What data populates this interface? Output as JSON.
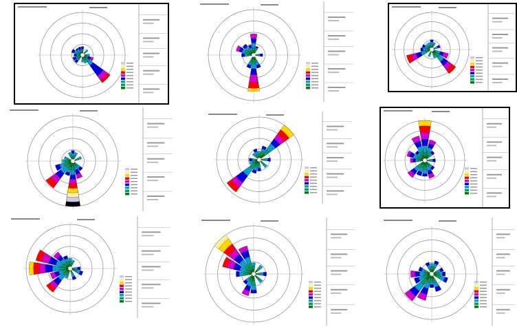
{
  "colors": {
    "bands": [
      "#c8c8f0",
      "#fff0a0",
      "#ffd700",
      "#ff0000",
      "#d000d0",
      "#0000e0",
      "#00a0d0",
      "#00a060",
      "#008000"
    ],
    "ring": "#8a8a8a",
    "frame": "#000000"
  },
  "chart_data": [
    {
      "type": "pie",
      "subtype": "wind-rose",
      "bordered": true,
      "directions": 16,
      "petals": [
        {
          "dir": 0,
          "bands": [
            6,
            4,
            3,
            2
          ]
        },
        {
          "dir": 2,
          "bands": [
            5,
            3,
            2
          ]
        },
        {
          "dir": 4,
          "bands": [
            5,
            3,
            2
          ]
        },
        {
          "dir": 5,
          "bands": [
            8,
            6,
            4,
            3,
            2
          ]
        },
        {
          "dir": 6,
          "bands": [
            24,
            22,
            18,
            9,
            6,
            3
          ]
        },
        {
          "dir": 7,
          "bands": [
            6,
            4,
            2
          ]
        },
        {
          "dir": 8,
          "bands": [
            5,
            3,
            2
          ]
        },
        {
          "dir": 10,
          "bands": [
            7,
            5,
            4,
            2
          ]
        },
        {
          "dir": 11,
          "bands": [
            7,
            5,
            4,
            2
          ]
        },
        {
          "dir": 12,
          "bands": [
            6,
            4,
            3,
            2
          ]
        },
        {
          "dir": 13,
          "bands": [
            8,
            6,
            4,
            2
          ]
        },
        {
          "dir": 14,
          "bands": [
            6,
            5,
            3,
            2
          ]
        },
        {
          "dir": 15,
          "bands": [
            6,
            4,
            3,
            2
          ]
        }
      ]
    },
    {
      "type": "pie",
      "subtype": "wind-rose",
      "bordered": false,
      "directions": 16,
      "petals": [
        {
          "dir": 0,
          "bands": [
            14,
            11,
            8,
            5,
            3
          ]
        },
        {
          "dir": 1,
          "bands": [
            6,
            5,
            4,
            2
          ]
        },
        {
          "dir": 4,
          "bands": [
            6,
            4,
            3,
            2
          ]
        },
        {
          "dir": 7,
          "bands": [
            9,
            7,
            5,
            3
          ]
        },
        {
          "dir": 8,
          "bands": [
            24,
            22,
            18,
            13,
            9,
            6,
            3
          ]
        },
        {
          "dir": 9,
          "bands": [
            9,
            7,
            5,
            3
          ]
        },
        {
          "dir": 12,
          "bands": [
            8,
            6,
            4,
            2
          ]
        },
        {
          "dir": 13,
          "bands": [
            12,
            10,
            8,
            6,
            3
          ]
        },
        {
          "dir": 14,
          "bands": [
            9,
            7,
            5,
            3
          ]
        },
        {
          "dir": 15,
          "bands": [
            7,
            5,
            3,
            2
          ]
        }
      ]
    },
    {
      "type": "pie",
      "subtype": "wind-rose",
      "bordered": true,
      "directions": 16,
      "petals": [
        {
          "dir": 0,
          "bands": [
            8,
            6,
            4,
            2
          ]
        },
        {
          "dir": 1,
          "bands": [
            6,
            4,
            2
          ]
        },
        {
          "dir": 3,
          "bands": [
            7,
            5,
            3,
            2
          ]
        },
        {
          "dir": 5,
          "bands": [
            14,
            10,
            7,
            4,
            2
          ]
        },
        {
          "dir": 6,
          "bands": [
            24,
            20,
            16,
            12,
            8,
            4
          ]
        },
        {
          "dir": 7,
          "bands": [
            7,
            5,
            3
          ]
        },
        {
          "dir": 9,
          "bands": [
            6,
            4,
            2
          ]
        },
        {
          "dir": 11,
          "bands": [
            21,
            17,
            13,
            9,
            5,
            2
          ]
        },
        {
          "dir": 12,
          "bands": [
            9,
            7,
            5,
            3
          ]
        },
        {
          "dir": 13,
          "bands": [
            8,
            6,
            4,
            2
          ]
        },
        {
          "dir": 14,
          "bands": [
            6,
            4,
            3
          ]
        },
        {
          "dir": 15,
          "bands": [
            6,
            4,
            2
          ]
        }
      ]
    },
    {
      "type": "pie",
      "subtype": "wind-rose",
      "bordered": false,
      "directions": 16,
      "petals": [
        {
          "dir": 0,
          "bands": [
            7,
            5,
            3,
            2
          ]
        },
        {
          "dir": 1,
          "bands": [
            6,
            4,
            2
          ]
        },
        {
          "dir": 3,
          "bands": [
            6,
            4,
            2
          ]
        },
        {
          "dir": 6,
          "bands": [
            8,
            6,
            4,
            2
          ]
        },
        {
          "dir": 7,
          "bands": [
            12,
            9,
            6,
            4,
            2
          ]
        },
        {
          "dir": 8,
          "bands": [
            30,
            27,
            24,
            21,
            18,
            15,
            12,
            9,
            6,
            3
          ]
        },
        {
          "dir": 9,
          "bands": [
            10,
            8,
            6,
            4
          ]
        },
        {
          "dir": 10,
          "bands": [
            22,
            18,
            14,
            10,
            6,
            3
          ]
        },
        {
          "dir": 11,
          "bands": [
            12,
            9,
            6,
            3
          ]
        },
        {
          "dir": 12,
          "bands": [
            7,
            5,
            3
          ]
        },
        {
          "dir": 13,
          "bands": [
            6,
            4,
            2
          ]
        },
        {
          "dir": 15,
          "bands": [
            6,
            4,
            2
          ]
        }
      ]
    },
    {
      "type": "pie",
      "subtype": "wind-rose",
      "bordered": false,
      "directions": 16,
      "petals": [
        {
          "dir": 0,
          "bands": [
            6,
            4,
            2
          ]
        },
        {
          "dir": 1,
          "bands": [
            10,
            8,
            6,
            3
          ]
        },
        {
          "dir": 2,
          "bands": [
            30,
            26,
            22,
            18,
            14,
            9,
            5
          ]
        },
        {
          "dir": 4,
          "bands": [
            8,
            6,
            4,
            2
          ]
        },
        {
          "dir": 6,
          "bands": [
            7,
            5,
            3
          ]
        },
        {
          "dir": 8,
          "bands": [
            8,
            6,
            4,
            2
          ]
        },
        {
          "dir": 9,
          "bands": [
            10,
            8,
            6,
            3
          ]
        },
        {
          "dir": 10,
          "bands": [
            28,
            24,
            20,
            14,
            8,
            4
          ]
        },
        {
          "dir": 11,
          "bands": [
            7,
            5,
            3
          ]
        },
        {
          "dir": 12,
          "bands": [
            7,
            5,
            3,
            2
          ]
        },
        {
          "dir": 14,
          "bands": [
            6,
            4,
            2
          ]
        },
        {
          "dir": 15,
          "bands": [
            8,
            6,
            4,
            2
          ]
        }
      ]
    },
    {
      "type": "pie",
      "subtype": "wind-rose",
      "bordered": true,
      "directions": 16,
      "petals": [
        {
          "dir": 0,
          "bands": [
            30,
            26,
            21,
            16,
            11,
            6,
            3
          ]
        },
        {
          "dir": 1,
          "bands": [
            16,
            13,
            10,
            7,
            4
          ]
        },
        {
          "dir": 2,
          "bands": [
            9,
            7,
            5,
            3
          ]
        },
        {
          "dir": 4,
          "bands": [
            8,
            6,
            4,
            2
          ]
        },
        {
          "dir": 6,
          "bands": [
            9,
            7,
            5,
            3
          ]
        },
        {
          "dir": 7,
          "bands": [
            14,
            11,
            8,
            5,
            3
          ]
        },
        {
          "dir": 8,
          "bands": [
            12,
            10,
            7,
            4
          ]
        },
        {
          "dir": 9,
          "bands": [
            12,
            9,
            6,
            3
          ]
        },
        {
          "dir": 10,
          "bands": [
            16,
            13,
            10,
            7,
            4
          ]
        },
        {
          "dir": 12,
          "bands": [
            11,
            9,
            7,
            5,
            3
          ]
        },
        {
          "dir": 13,
          "bands": [
            14,
            12,
            9,
            6,
            3
          ]
        },
        {
          "dir": 14,
          "bands": [
            9,
            7,
            5,
            3
          ]
        },
        {
          "dir": 15,
          "bands": [
            19,
            15,
            11,
            7,
            4
          ]
        }
      ]
    },
    {
      "type": "pie",
      "subtype": "wind-rose",
      "bordered": false,
      "directions": 16,
      "petals": [
        {
          "dir": 0,
          "bands": [
            7,
            5,
            3
          ]
        },
        {
          "dir": 1,
          "bands": [
            6,
            4,
            2
          ]
        },
        {
          "dir": 4,
          "bands": [
            7,
            5,
            3,
            2
          ]
        },
        {
          "dir": 5,
          "bands": [
            9,
            7,
            5,
            3
          ]
        },
        {
          "dir": 7,
          "bands": [
            8,
            6,
            4,
            2
          ]
        },
        {
          "dir": 9,
          "bands": [
            7,
            5,
            3
          ]
        },
        {
          "dir": 10,
          "bands": [
            20,
            17,
            14,
            10,
            6,
            3
          ]
        },
        {
          "dir": 11,
          "bands": [
            14,
            11,
            8,
            5,
            3
          ]
        },
        {
          "dir": 12,
          "bands": [
            28,
            25,
            21,
            17,
            12,
            7,
            3
          ]
        },
        {
          "dir": 13,
          "bands": [
            24,
            20,
            15,
            10,
            6,
            3
          ]
        },
        {
          "dir": 14,
          "bands": [
            14,
            11,
            8,
            5,
            3
          ]
        },
        {
          "dir": 15,
          "bands": [
            9,
            7,
            5,
            3
          ]
        }
      ]
    },
    {
      "type": "pie",
      "subtype": "wind-rose",
      "bordered": false,
      "directions": 16,
      "petals": [
        {
          "dir": 0,
          "bands": [
            7,
            5,
            3
          ]
        },
        {
          "dir": 2,
          "bands": [
            7,
            5,
            3
          ]
        },
        {
          "dir": 4,
          "bands": [
            8,
            6,
            4,
            2
          ]
        },
        {
          "dir": 6,
          "bands": [
            7,
            5,
            3
          ]
        },
        {
          "dir": 8,
          "bands": [
            12,
            10,
            7,
            4
          ]
        },
        {
          "dir": 9,
          "bands": [
            14,
            11,
            8,
            5,
            3
          ]
        },
        {
          "dir": 10,
          "bands": [
            8,
            6,
            4,
            2
          ]
        },
        {
          "dir": 12,
          "bands": [
            11,
            9,
            6,
            3
          ]
        },
        {
          "dir": 13,
          "bands": [
            20,
            17,
            13,
            9,
            5,
            2
          ]
        },
        {
          "dir": 14,
          "bands": [
            30,
            27,
            23,
            19,
            15,
            11,
            7,
            3
          ]
        },
        {
          "dir": 15,
          "bands": [
            18,
            15,
            11,
            7,
            3
          ]
        }
      ]
    },
    {
      "type": "pie",
      "subtype": "wind-rose",
      "bordered": false,
      "directions": 16,
      "petals": [
        {
          "dir": 0,
          "bands": [
            7,
            5,
            3
          ]
        },
        {
          "dir": 1,
          "bands": [
            9,
            7,
            5,
            3
          ]
        },
        {
          "dir": 3,
          "bands": [
            8,
            6,
            4,
            2
          ]
        },
        {
          "dir": 4,
          "bands": [
            9,
            7,
            5,
            3
          ]
        },
        {
          "dir": 5,
          "bands": [
            11,
            9,
            6,
            3
          ]
        },
        {
          "dir": 7,
          "bands": [
            12,
            9,
            6,
            3
          ]
        },
        {
          "dir": 8,
          "bands": [
            9,
            7,
            5,
            3
          ]
        },
        {
          "dir": 9,
          "bands": [
            18,
            14,
            10,
            6,
            3
          ]
        },
        {
          "dir": 10,
          "bands": [
            22,
            18,
            14,
            9,
            5
          ]
        },
        {
          "dir": 11,
          "bands": [
            12,
            9,
            6,
            3
          ]
        },
        {
          "dir": 12,
          "bands": [
            14,
            11,
            8,
            5,
            3
          ]
        },
        {
          "dir": 13,
          "bands": [
            9,
            7,
            5,
            3
          ]
        },
        {
          "dir": 15,
          "bands": [
            8,
            6,
            4,
            2
          ]
        }
      ]
    }
  ]
}
